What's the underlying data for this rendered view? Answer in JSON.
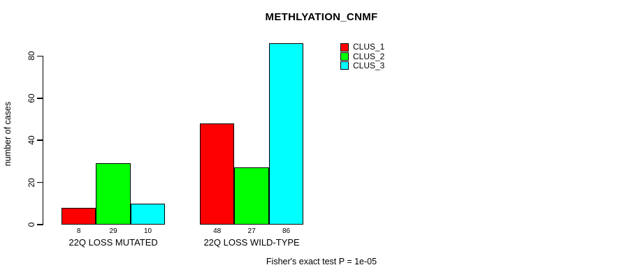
{
  "chart_data": {
    "type": "bar",
    "title": "METHLYATION_CNMF",
    "ylabel": "number of cases",
    "xlabel": "",
    "categories": [
      "22Q LOSS MUTATED",
      "22Q LOSS WILD-TYPE"
    ],
    "series": [
      {
        "name": "CLUS_1",
        "color": "#ff0000",
        "values": [
          8,
          48
        ]
      },
      {
        "name": "CLUS_2",
        "color": "#00ff00",
        "values": [
          29,
          27
        ]
      },
      {
        "name": "CLUS_3",
        "color": "#00ffff",
        "values": [
          10,
          86
        ]
      }
    ],
    "yticks": [
      0,
      20,
      40,
      60,
      80
    ],
    "ylim": [
      0,
      86.5
    ],
    "bar_value_labels": [
      [
        8,
        29,
        10
      ],
      [
        48,
        27,
        86
      ]
    ],
    "grid": false,
    "legend_position": "top-right",
    "annotation": "Fisher's exact test P = 1e-05",
    "axis_color": "#000000",
    "background_color": "#ffffff"
  }
}
